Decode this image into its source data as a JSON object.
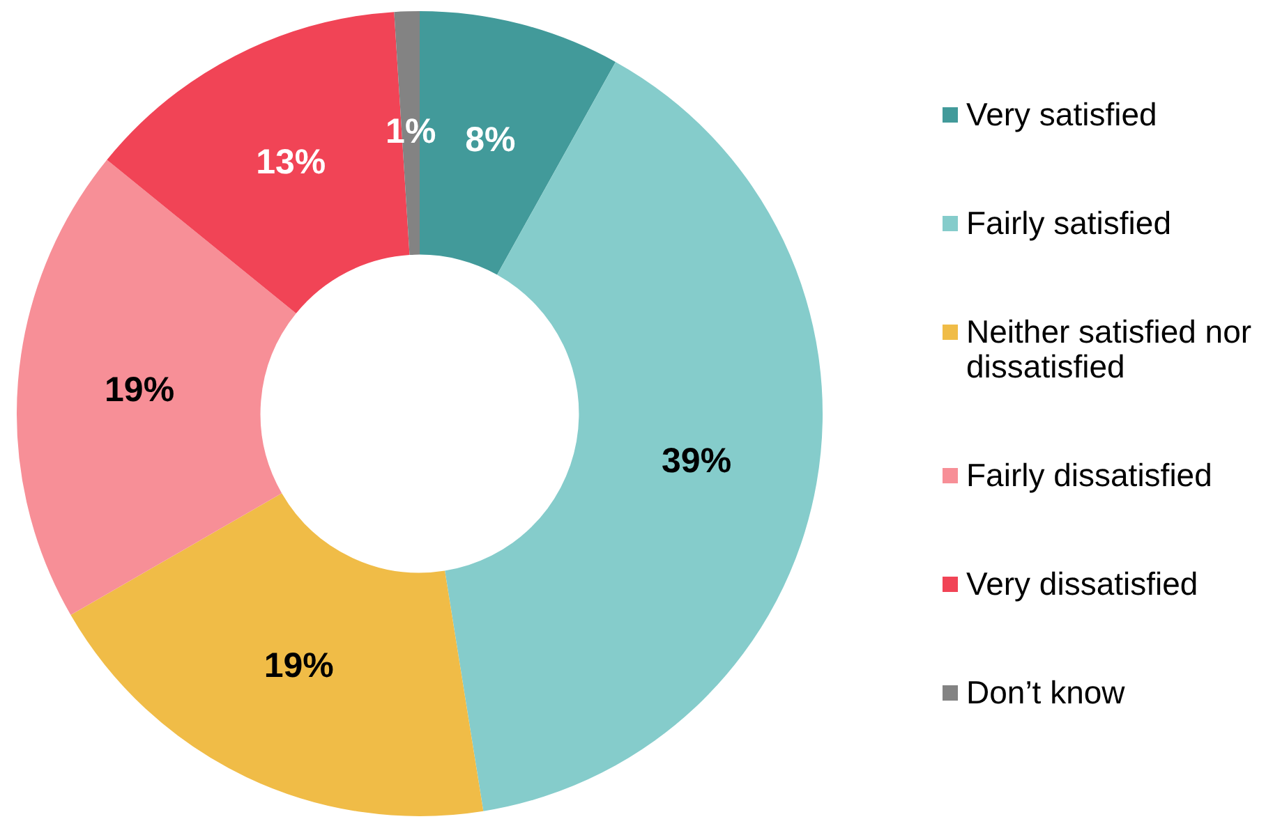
{
  "chart_data": {
    "type": "donut",
    "categories": [
      "Very satisfied",
      "Fairly satisfied",
      "Neither satisfied nor dissatisfied",
      "Fairly dissatisfied",
      "Very dissatisfied",
      "Don’t know"
    ],
    "values": [
      8,
      39,
      19,
      19,
      13,
      1
    ],
    "colors": [
      "#429a9a",
      "#85cccb",
      "#f0bc47",
      "#f78f97",
      "#f14456",
      "#838383"
    ],
    "value_labels": [
      "8%",
      "39%",
      "19%",
      "19%",
      "13%",
      "1%"
    ],
    "legend": "right"
  }
}
